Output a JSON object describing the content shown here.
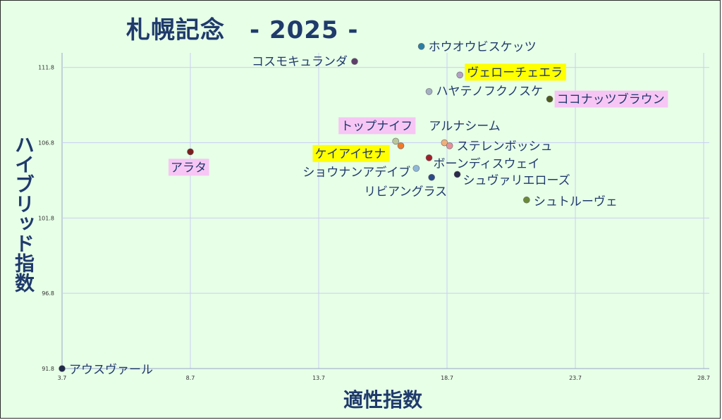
{
  "chart_data": {
    "type": "scatter",
    "title": "札幌記念　- 2025 -",
    "xlabel": "適性指数",
    "ylabel": "ハイブリッド指数",
    "xlim": [
      3.7,
      28.7
    ],
    "ylim": [
      91.8,
      113.8
    ],
    "xticks": [
      "3.7",
      "8.7",
      "13.7",
      "18.7",
      "23.7",
      "28.7"
    ],
    "yticks": [
      "91.8",
      "96.8",
      "101.8",
      "106.8",
      "111.8"
    ],
    "grid": true,
    "points": [
      {
        "name": "ホウオウビスケッツ",
        "x": 17.7,
        "y": 113.2,
        "color": "#2b7fa3",
        "highlight": "none"
      },
      {
        "name": "コスモキュランダ",
        "x": 15.1,
        "y": 112.2,
        "color": "#5e3f6b",
        "highlight": "none"
      },
      {
        "name": "ヴェローチェエラ",
        "x": 19.2,
        "y": 111.3,
        "color": "#b3a0c8",
        "highlight": "yellow"
      },
      {
        "name": "ハヤテノフクノスケ",
        "x": 18.0,
        "y": 110.2,
        "color": "#a4b0c4",
        "highlight": "none"
      },
      {
        "name": "ココナッツブラウン",
        "x": 22.7,
        "y": 109.7,
        "color": "#4d5a1e",
        "highlight": "pink"
      },
      {
        "name": "トップナイフ",
        "x": 16.7,
        "y": 106.9,
        "color": "#b9c79a",
        "highlight": "pink"
      },
      {
        "name": "ケイアイセナ",
        "x": 16.9,
        "y": 106.6,
        "color": "#f07a2a",
        "highlight": "yellow"
      },
      {
        "name": "アルナシーム",
        "x": 18.6,
        "y": 106.8,
        "color": "#f0b07a",
        "highlight": "none"
      },
      {
        "name": "ステレンボッシュ",
        "x": 18.8,
        "y": 106.6,
        "color": "#e8909a",
        "highlight": "none"
      },
      {
        "name": "アラタ",
        "x": 8.7,
        "y": 106.2,
        "color": "#7a1f1f",
        "highlight": "pink"
      },
      {
        "name": "ボーンディスウェイ",
        "x": 18.0,
        "y": 105.8,
        "color": "#a0202a",
        "highlight": "none"
      },
      {
        "name": "ショウナンアデイブ",
        "x": 17.5,
        "y": 105.1,
        "color": "#8fb8d8",
        "highlight": "none"
      },
      {
        "name": "シュヴァリエローズ",
        "x": 19.1,
        "y": 104.7,
        "color": "#2a2a4a",
        "highlight": "none"
      },
      {
        "name": "リビアングラス",
        "x": 18.1,
        "y": 104.5,
        "color": "#2a4a8a",
        "highlight": "none"
      },
      {
        "name": "シュトルーヴェ",
        "x": 21.8,
        "y": 103.0,
        "color": "#6a8a3a",
        "highlight": "none"
      },
      {
        "name": "アウスヴァール",
        "x": 3.7,
        "y": 91.8,
        "color": "#1f2a4a",
        "highlight": "none"
      }
    ]
  }
}
